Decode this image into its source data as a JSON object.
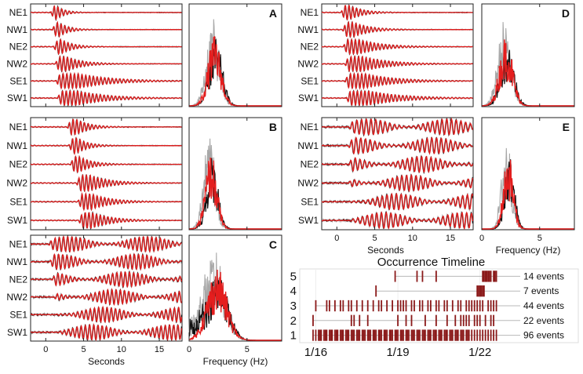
{
  "colors": {
    "red": "#e41e1e",
    "black": "#111111",
    "gray": "#a8a8a8",
    "event": "#8b1a1a",
    "timeline_line": "#b8b8b8"
  },
  "station_labels": [
    "NE1",
    "NW1",
    "NE2",
    "NW2",
    "SE1",
    "SW1"
  ],
  "seconds_label": "Seconds",
  "frequency_label": "Frequency (Hz)",
  "chart_data": [
    {
      "type": "line",
      "panel": "A",
      "title": "A",
      "kind": "waveforms",
      "xlabel": "",
      "xlim": [
        -2,
        18
      ],
      "xticks": [
        0,
        5,
        10,
        15
      ],
      "tick_labels_visible": false,
      "series": [
        {
          "name": "NE1",
          "arrival_s": 0.6,
          "duration_s": 2.5
        },
        {
          "name": "NW1",
          "arrival_s": 0.8,
          "duration_s": 3.0
        },
        {
          "name": "NE2",
          "arrival_s": 1.0,
          "duration_s": 3.5
        },
        {
          "name": "NW2",
          "arrival_s": 1.2,
          "duration_s": 5.0
        },
        {
          "name": "SE1",
          "arrival_s": 1.3,
          "duration_s": 10.0
        },
        {
          "name": "SW1",
          "arrival_s": 1.5,
          "duration_s": 9.0
        }
      ]
    },
    {
      "type": "area",
      "panel": "A",
      "kind": "spectrum",
      "xlim": [
        0,
        8
      ],
      "xticks": [
        0,
        5
      ],
      "tick_labels_visible": false,
      "peak_hz": 2.2,
      "width_hz": 0.8
    },
    {
      "type": "line",
      "panel": "B",
      "title": "B",
      "kind": "waveforms",
      "xlabel": "",
      "xlim": [
        -2,
        18
      ],
      "xticks": [
        0,
        5,
        10,
        15
      ],
      "tick_labels_visible": false,
      "series": [
        {
          "name": "NE1",
          "arrival_s": 2.8,
          "duration_s": 4.0
        },
        {
          "name": "NW1",
          "arrival_s": 3.0,
          "duration_s": 3.5
        },
        {
          "name": "NE2",
          "arrival_s": 3.2,
          "duration_s": 4.0
        },
        {
          "name": "NW2",
          "arrival_s": 4.0,
          "duration_s": 6.0
        },
        {
          "name": "SE1",
          "arrival_s": 4.2,
          "duration_s": 6.0
        },
        {
          "name": "SW1",
          "arrival_s": 4.3,
          "duration_s": 6.0
        }
      ]
    },
    {
      "type": "area",
      "panel": "B",
      "kind": "spectrum",
      "xlim": [
        0,
        8
      ],
      "xticks": [
        0,
        5
      ],
      "tick_labels_visible": false,
      "peak_hz": 1.9,
      "width_hz": 0.7
    },
    {
      "type": "line",
      "panel": "C",
      "title": "C",
      "kind": "waveforms",
      "xlabel": "Seconds",
      "xlim": [
        -2,
        18
      ],
      "xticks": [
        0,
        5,
        10,
        15
      ],
      "tick_labels_visible": true,
      "series": [
        {
          "name": "NE1",
          "arrival_s": 0.3,
          "duration_s": 14.0
        },
        {
          "name": "NW1",
          "arrival_s": 0.5,
          "duration_s": 14.0
        },
        {
          "name": "NE2",
          "arrival_s": 0.8,
          "duration_s": 14.0
        },
        {
          "name": "NW2",
          "arrival_s": 1.0,
          "duration_s": 14.0
        },
        {
          "name": "SE1",
          "arrival_s": 1.2,
          "duration_s": 14.0
        },
        {
          "name": "SW1",
          "arrival_s": 1.4,
          "duration_s": 14.0
        }
      ]
    },
    {
      "type": "area",
      "panel": "C",
      "kind": "spectrum",
      "xlabel": "Frequency (Hz)",
      "xlim": [
        0,
        8
      ],
      "xticks": [
        0,
        5
      ],
      "tick_labels_visible": true,
      "peak_hz": 2.4,
      "width_hz": 1.2
    },
    {
      "type": "line",
      "panel": "D",
      "title": "D",
      "kind": "waveforms",
      "xlabel": "",
      "xlim": [
        -2,
        18
      ],
      "xticks": [
        0,
        5,
        10,
        15
      ],
      "tick_labels_visible": false,
      "series": [
        {
          "name": "NE1",
          "arrival_s": 0.5,
          "duration_s": 4.0
        },
        {
          "name": "NW1",
          "arrival_s": 0.7,
          "duration_s": 5.0
        },
        {
          "name": "NE2",
          "arrival_s": 0.8,
          "duration_s": 7.0
        },
        {
          "name": "NW2",
          "arrival_s": 1.0,
          "duration_s": 8.0
        },
        {
          "name": "SE1",
          "arrival_s": 1.0,
          "duration_s": 9.0
        },
        {
          "name": "SW1",
          "arrival_s": 1.2,
          "duration_s": 10.0
        }
      ]
    },
    {
      "type": "area",
      "panel": "D",
      "kind": "spectrum",
      "xlim": [
        0,
        8
      ],
      "xticks": [
        0,
        5
      ],
      "tick_labels_visible": false,
      "peak_hz": 2.1,
      "width_hz": 0.8
    },
    {
      "type": "line",
      "panel": "E",
      "title": "E",
      "kind": "waveforms",
      "xlabel": "Seconds",
      "xlim": [
        -2,
        18
      ],
      "xticks": [
        0,
        5,
        10,
        15
      ],
      "tick_labels_visible": true,
      "series": [
        {
          "name": "NE1",
          "arrival_s": 1.5,
          "duration_s": 15.0
        },
        {
          "name": "NW1",
          "arrival_s": 1.5,
          "duration_s": 15.0
        },
        {
          "name": "NE2",
          "arrival_s": 1.5,
          "duration_s": 15.0
        },
        {
          "name": "NW2",
          "arrival_s": 1.5,
          "duration_s": 15.0
        },
        {
          "name": "SE1",
          "arrival_s": 1.5,
          "duration_s": 15.0
        },
        {
          "name": "SW1",
          "arrival_s": 1.5,
          "duration_s": 15.0
        }
      ]
    },
    {
      "type": "area",
      "panel": "E",
      "kind": "spectrum",
      "xlabel": "Frequency (Hz)",
      "xlim": [
        0,
        8
      ],
      "xticks": [
        0,
        5
      ],
      "tick_labels_visible": true,
      "peak_hz": 2.3,
      "width_hz": 0.6
    },
    {
      "type": "scatter",
      "kind": "timeline",
      "title": "Occurrence Timeline",
      "x_tick_labels": [
        "1/16",
        "1/19",
        "1/22"
      ],
      "x_tick_days": [
        16,
        19,
        22
      ],
      "xlim_days": [
        15.7,
        23.3
      ],
      "categories": [
        "5",
        "4",
        "3",
        "2",
        "1"
      ],
      "rows": [
        {
          "label": "5",
          "count_label": "14 events",
          "events": [
            18.9,
            19.7,
            19.9,
            20.4,
            22.1,
            22.15,
            22.2,
            22.25,
            22.3,
            22.35,
            22.4,
            22.5,
            22.55,
            22.6
          ]
        },
        {
          "label": "4",
          "count_label": "7 events",
          "events": [
            18.2,
            21.9,
            21.95,
            22.0,
            22.05,
            22.1,
            22.15
          ]
        },
        {
          "label": "3",
          "count_label": "44 events",
          "events": [
            16.0,
            16.4,
            16.5,
            16.7,
            16.9,
            17.0,
            17.2,
            17.3,
            17.5,
            17.7,
            17.9,
            18.1,
            18.3,
            18.4,
            18.6,
            18.8,
            19.0,
            19.1,
            19.2,
            19.3,
            19.5,
            19.6,
            19.8,
            19.9,
            20.1,
            20.2,
            20.4,
            20.5,
            20.7,
            20.8,
            21.0,
            21.2,
            21.3,
            21.5,
            21.6,
            21.7,
            21.8,
            21.9,
            22.0,
            22.1,
            22.3,
            22.4,
            22.5,
            22.6
          ]
        },
        {
          "label": "2",
          "count_label": "22 events",
          "events": [
            15.9,
            17.3,
            17.4,
            17.6,
            17.9,
            19.0,
            19.3,
            19.5,
            20.0,
            20.4,
            20.8,
            21.1,
            21.3,
            21.4,
            21.5,
            21.6,
            21.8,
            21.9,
            22.0,
            22.2,
            22.4,
            22.5
          ]
        },
        {
          "label": "1",
          "count_label": "96 events",
          "events": [
            15.9,
            16.0,
            16.1,
            16.15,
            16.2,
            16.3,
            16.35,
            16.4,
            16.5,
            16.55,
            16.6,
            16.7,
            16.75,
            16.8,
            16.9,
            16.95,
            17.0,
            17.1,
            17.15,
            17.2,
            17.3,
            17.35,
            17.4,
            17.5,
            17.55,
            17.6,
            17.7,
            17.75,
            17.8,
            17.9,
            17.95,
            18.0,
            18.1,
            18.15,
            18.2,
            18.3,
            18.35,
            18.4,
            18.5,
            18.55,
            18.6,
            18.7,
            18.75,
            18.8,
            18.9,
            18.95,
            19.0,
            19.1,
            19.15,
            19.2,
            19.3,
            19.35,
            19.4,
            19.5,
            19.55,
            19.6,
            19.7,
            19.75,
            19.8,
            19.9,
            19.95,
            20.0,
            20.1,
            20.15,
            20.2,
            20.3,
            20.35,
            20.4,
            20.5,
            20.55,
            20.6,
            20.7,
            20.75,
            20.8,
            20.9,
            20.95,
            21.0,
            21.1,
            21.15,
            21.2,
            21.3,
            21.35,
            21.4,
            21.5,
            21.55,
            21.6,
            21.7,
            21.8,
            21.9,
            22.0,
            22.1,
            22.2,
            22.3,
            22.4,
            22.5,
            22.6
          ]
        }
      ]
    }
  ]
}
